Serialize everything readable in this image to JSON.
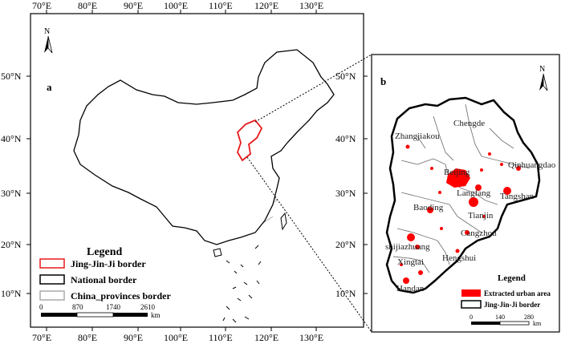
{
  "map_a": {
    "panel_letter": "a",
    "north_label": "N",
    "top_ticks": [
      "70°E",
      "80°E",
      "90°E",
      "100°E",
      "110°E",
      "120°E",
      "130°E"
    ],
    "bottom_ticks": [
      "70°E",
      "80°E",
      "90°E",
      "100°E",
      "110°E",
      "120°E",
      "130°E"
    ],
    "left_ticks": [
      "50°N",
      "40°N",
      "30°N",
      "20°N",
      "10°N"
    ],
    "right_ticks": [
      "50°N",
      "40°N",
      "30°N",
      "20°N",
      "10°N"
    ],
    "legend": {
      "title": "Legend",
      "items": [
        {
          "label": "Jing-Jin-Ji border",
          "color": "#e8191b"
        },
        {
          "label": "National border",
          "color": "#000000"
        },
        {
          "label": "China_provinces border",
          "color": "#aaaaaa"
        }
      ]
    },
    "scale": {
      "labels": [
        "0",
        "870",
        "1740",
        "2610"
      ],
      "unit": "km"
    }
  },
  "map_b": {
    "panel_letter": "b",
    "north_label": "N",
    "cities": [
      "Zhangjiakou",
      "Chengde",
      "Beijing",
      "Qinhuangdao",
      "Tangshan",
      "Langfang",
      "Tianjin",
      "Baoding",
      "Cangzhou",
      "shijiazhuang",
      "Hengshui",
      "Xingtai",
      "Handan"
    ],
    "legend": {
      "title": "Legend",
      "items": [
        {
          "label": "Extracted urban area",
          "color": "#ff0000"
        },
        {
          "label": "Jing-Jin-Ji border",
          "color": "#000000"
        }
      ]
    },
    "scale": {
      "labels": [
        "0",
        "140",
        "280"
      ],
      "unit": "km"
    }
  }
}
